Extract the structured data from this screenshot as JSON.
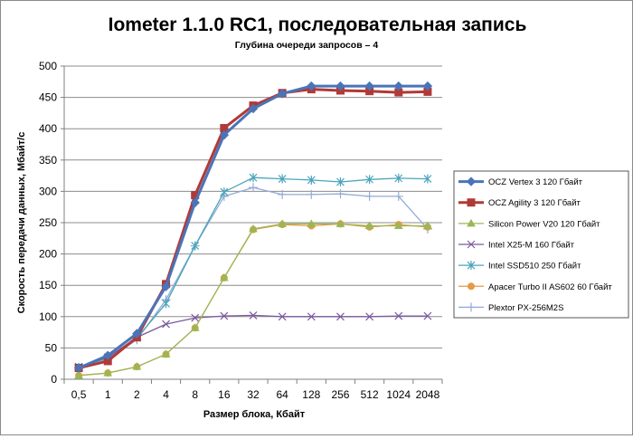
{
  "chart_data": {
    "type": "line",
    "title": "Iometer 1.1.0 RC1, последовательная запись",
    "subtitle": "Глубина очереди запросов – 4",
    "xlabel": "Размер блока, Кбайт",
    "ylabel": "Скорость передачи данных, Мбайт/с",
    "ylim": [
      0,
      500
    ],
    "yticks": [
      0,
      50,
      100,
      150,
      200,
      250,
      300,
      350,
      400,
      450,
      500
    ],
    "categories": [
      "0,5",
      "1",
      "2",
      "4",
      "8",
      "16",
      "32",
      "64",
      "128",
      "256",
      "512",
      "1024",
      "2048"
    ],
    "grid": true,
    "legend_position": "right",
    "series": [
      {
        "name": "OCZ Vertex 3 120 Гбайт",
        "color": "#4a74b8",
        "marker": "diamond",
        "values": [
          18,
          38,
          73,
          148,
          282,
          390,
          432,
          456,
          468,
          468,
          468,
          468,
          468
        ]
      },
      {
        "name": "OCZ Agility 3 120 Гбайт",
        "color": "#b03a38",
        "marker": "square",
        "values": [
          18,
          29,
          67,
          152,
          294,
          401,
          437,
          457,
          463,
          461,
          460,
          458,
          459
        ]
      },
      {
        "name": "Silicon Power V20 120 Гбайт",
        "color": "#99b855",
        "marker": "triangle",
        "values": [
          6,
          10,
          20,
          40,
          82,
          162,
          240,
          248,
          248,
          248,
          245,
          245,
          245
        ]
      },
      {
        "name": "Intel X25-M 160 Гбайт",
        "color": "#7b5a9e",
        "marker": "x",
        "values": [
          20,
          35,
          67,
          88,
          98,
          101,
          102,
          100,
          100,
          100,
          100,
          101,
          101
        ]
      },
      {
        "name": "Intel SSD510 250 Гбайт",
        "color": "#4aa5bb",
        "marker": "star",
        "values": [
          19,
          34,
          66,
          121,
          213,
          299,
          322,
          320,
          318,
          315,
          319,
          321,
          320
        ]
      },
      {
        "name": "Apacer Turbo II AS602 60 Гбайт",
        "color": "#e59a44",
        "marker": "circle",
        "values": [
          6,
          10,
          20,
          40,
          82,
          162,
          239,
          247,
          245,
          248,
          243,
          247,
          243
        ]
      },
      {
        "name": "Plextor PX-256M2S",
        "color": "#93acd6",
        "marker": "plus",
        "values": [
          18,
          32,
          63,
          127,
          213,
          292,
          306,
          295,
          295,
          296,
          292,
          292,
          240
        ]
      }
    ]
  }
}
